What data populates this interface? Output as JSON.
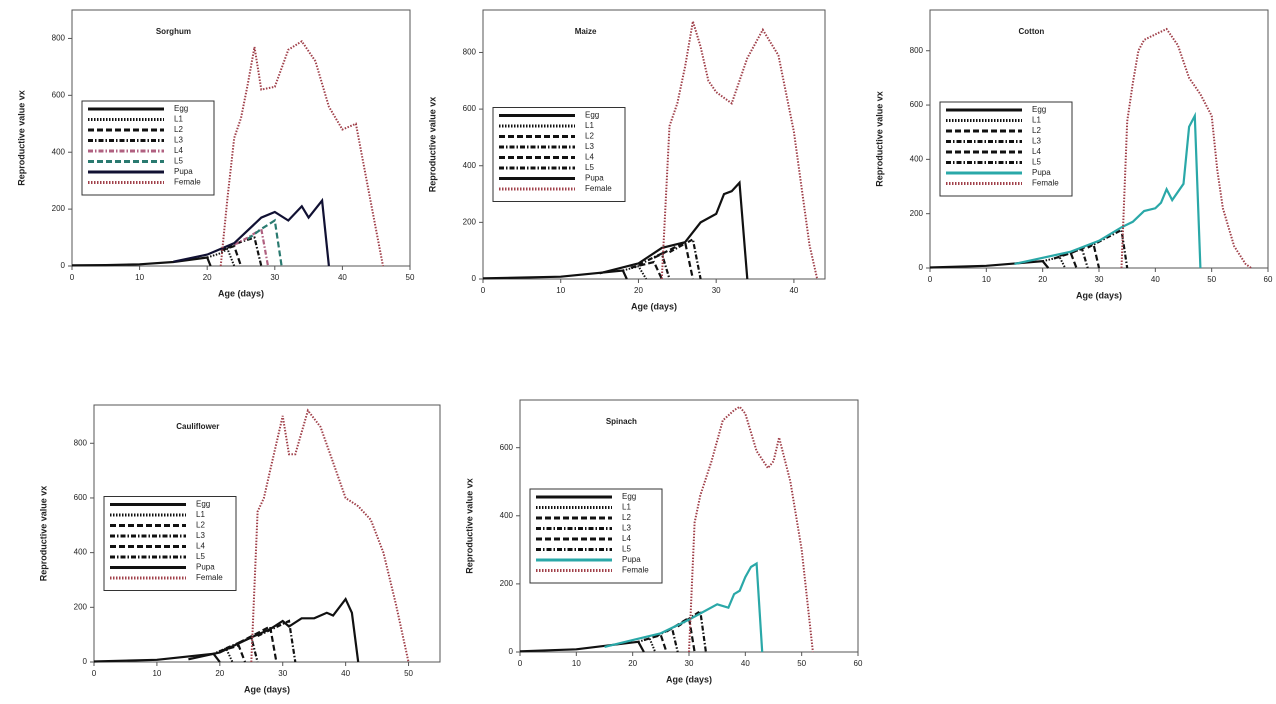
{
  "chart_data": [
    {
      "type": "line",
      "title": "Sorghum",
      "x_label": "Age (days)",
      "y_label": "Reproductive value vx",
      "xlim": [
        0,
        50
      ],
      "xticks": [
        0,
        10,
        20,
        30,
        40,
        50
      ],
      "ylim": [
        0,
        900
      ],
      "yticks": [
        0,
        200,
        400,
        600,
        800
      ],
      "legend": "left",
      "series": [
        {
          "name": "Egg",
          "color": "#111111",
          "dash": "solid",
          "x": [
            0,
            5,
            10,
            15,
            20,
            20.5
          ],
          "values": [
            2,
            3,
            6,
            14,
            30,
            0
          ]
        },
        {
          "name": "L1",
          "color": "#111111",
          "dash": "dotted",
          "x": [
            20,
            22,
            23,
            24
          ],
          "values": [
            30,
            45,
            60,
            0
          ]
        },
        {
          "name": "L2",
          "color": "#111111",
          "dash": "dashed",
          "x": [
            22,
            24,
            25
          ],
          "values": [
            55,
            70,
            0
          ]
        },
        {
          "name": "L3",
          "color": "#111111",
          "dash": "dashdot",
          "x": [
            23,
            25,
            27,
            28
          ],
          "values": [
            65,
            85,
            100,
            0
          ]
        },
        {
          "name": "L4",
          "color": "#b06080",
          "dash": "dashdot",
          "x": [
            24,
            26,
            28,
            29
          ],
          "values": [
            75,
            100,
            130,
            0
          ]
        },
        {
          "name": "L5",
          "color": "#2a7a70",
          "dash": "dashed",
          "x": [
            26,
            28,
            30,
            31
          ],
          "values": [
            95,
            130,
            160,
            0
          ]
        },
        {
          "name": "Pupa",
          "color": "#111133",
          "dash": "solid",
          "x": [
            15,
            20,
            24,
            28,
            30,
            32,
            34,
            35,
            37,
            38
          ],
          "values": [
            15,
            40,
            80,
            170,
            190,
            160,
            210,
            170,
            230,
            0
          ]
        },
        {
          "name": "Female",
          "color": "#a0404a",
          "dash": "dotted",
          "x": [
            22,
            23,
            24,
            25,
            26,
            27,
            28,
            30,
            32,
            34,
            36,
            38,
            40,
            42,
            44,
            46
          ],
          "values": [
            0,
            240,
            450,
            520,
            640,
            770,
            620,
            630,
            760,
            790,
            720,
            560,
            480,
            500,
            250,
            0
          ]
        }
      ]
    },
    {
      "type": "line",
      "title": "Maize",
      "x_label": "Age (days)",
      "y_label": "Reproductive value vx",
      "xlim": [
        0,
        44
      ],
      "xticks": [
        0,
        10,
        20,
        30,
        40
      ],
      "ylim": [
        0,
        950
      ],
      "yticks": [
        0,
        200,
        400,
        600,
        800
      ],
      "legend": "left",
      "series": [
        {
          "name": "Egg",
          "color": "#111111",
          "dash": "solid",
          "x": [
            0,
            10,
            18,
            18.5
          ],
          "values": [
            2,
            8,
            30,
            0
          ]
        },
        {
          "name": "L1",
          "color": "#111111",
          "dash": "dotted",
          "x": [
            18,
            20,
            21
          ],
          "values": [
            30,
            45,
            0
          ]
        },
        {
          "name": "L2",
          "color": "#111111",
          "dash": "dashed",
          "x": [
            19,
            22,
            23
          ],
          "values": [
            40,
            60,
            0
          ]
        },
        {
          "name": "L3",
          "color": "#111111",
          "dash": "dashdot",
          "x": [
            20,
            23,
            24
          ],
          "values": [
            50,
            90,
            0
          ]
        },
        {
          "name": "L4",
          "color": "#111111",
          "dash": "dashed",
          "x": [
            22,
            26,
            27
          ],
          "values": [
            75,
            130,
            0
          ]
        },
        {
          "name": "L5",
          "color": "#111111",
          "dash": "dashdot",
          "x": [
            24,
            27,
            28
          ],
          "values": [
            95,
            140,
            0
          ]
        },
        {
          "name": "Pupa",
          "color": "#111111",
          "dash": "solid",
          "x": [
            15,
            20,
            23,
            26,
            28,
            30,
            31,
            32,
            33,
            34
          ],
          "values": [
            20,
            55,
            110,
            130,
            200,
            230,
            300,
            310,
            340,
            0
          ]
        },
        {
          "name": "Female",
          "color": "#a0404a",
          "dash": "dotted",
          "x": [
            23,
            24,
            25,
            26,
            27,
            28,
            29,
            30,
            31,
            32,
            34,
            36,
            38,
            40,
            42,
            43
          ],
          "values": [
            0,
            540,
            620,
            750,
            910,
            820,
            700,
            660,
            640,
            620,
            780,
            880,
            790,
            520,
            120,
            0
          ]
        }
      ]
    },
    {
      "type": "line",
      "title": "Cotton",
      "x_label": "Age (days)",
      "y_label": "Reproductive value vx",
      "xlim": [
        0,
        60
      ],
      "xticks": [
        0,
        10,
        20,
        30,
        40,
        50,
        60
      ],
      "ylim": [
        0,
        950
      ],
      "yticks": [
        0,
        200,
        400,
        600,
        800
      ],
      "legend": "left",
      "series": [
        {
          "name": "Egg",
          "color": "#111111",
          "dash": "solid",
          "x": [
            0,
            10,
            20,
            21
          ],
          "values": [
            2,
            8,
            25,
            0
          ]
        },
        {
          "name": "L1",
          "color": "#111111",
          "dash": "dotted",
          "x": [
            20,
            23,
            24
          ],
          "values": [
            25,
            40,
            0
          ]
        },
        {
          "name": "L2",
          "color": "#111111",
          "dash": "dashed",
          "x": [
            22,
            25,
            26
          ],
          "values": [
            35,
            55,
            0
          ]
        },
        {
          "name": "L3",
          "color": "#111111",
          "dash": "dashdot",
          "x": [
            23,
            27,
            28
          ],
          "values": [
            45,
            70,
            0
          ]
        },
        {
          "name": "L4",
          "color": "#111111",
          "dash": "dashed",
          "x": [
            25,
            29,
            30
          ],
          "values": [
            55,
            90,
            0
          ]
        },
        {
          "name": "L5",
          "color": "#111111",
          "dash": "dashdot",
          "x": [
            28,
            34,
            35
          ],
          "values": [
            75,
            140,
            0
          ]
        },
        {
          "name": "Pupa",
          "color": "#2aa8a8",
          "dash": "solid",
          "x": [
            15,
            25,
            30,
            34,
            36,
            38,
            40,
            41,
            42,
            43,
            45,
            46,
            47,
            48
          ],
          "values": [
            15,
            60,
            100,
            150,
            170,
            210,
            220,
            240,
            290,
            250,
            310,
            520,
            560,
            0
          ]
        },
        {
          "name": "Female",
          "color": "#a0404a",
          "dash": "dotted",
          "x": [
            34,
            35,
            36,
            37,
            38,
            40,
            42,
            44,
            46,
            48,
            50,
            51,
            52,
            54,
            56,
            57
          ],
          "values": [
            0,
            540,
            680,
            800,
            840,
            860,
            880,
            820,
            700,
            640,
            560,
            360,
            220,
            80,
            15,
            0
          ]
        }
      ]
    },
    {
      "type": "line",
      "title": "Cauliflower",
      "x_label": "Age (days)",
      "y_label": "Reproductive value vx",
      "xlim": [
        0,
        55
      ],
      "xticks": [
        0,
        10,
        20,
        30,
        40,
        50
      ],
      "ylim": [
        0,
        940
      ],
      "yticks": [
        0,
        200,
        400,
        600,
        800
      ],
      "legend": "left",
      "series": [
        {
          "name": "Egg",
          "color": "#111111",
          "dash": "solid",
          "x": [
            0,
            10,
            19,
            20
          ],
          "values": [
            2,
            8,
            30,
            0
          ]
        },
        {
          "name": "L1",
          "color": "#111111",
          "dash": "dotted",
          "x": [
            19,
            21,
            22
          ],
          "values": [
            30,
            50,
            0
          ]
        },
        {
          "name": "L2",
          "color": "#111111",
          "dash": "dashed",
          "x": [
            20,
            23,
            24
          ],
          "values": [
            40,
            60,
            0
          ]
        },
        {
          "name": "L3",
          "color": "#111111",
          "dash": "dashdot",
          "x": [
            21,
            25,
            26
          ],
          "values": [
            50,
            90,
            0
          ]
        },
        {
          "name": "L4",
          "color": "#111111",
          "dash": "dashed",
          "x": [
            23,
            28,
            29
          ],
          "values": [
            70,
            130,
            0
          ]
        },
        {
          "name": "L5",
          "color": "#111111",
          "dash": "dashdot",
          "x": [
            26,
            31,
            32
          ],
          "values": [
            95,
            150,
            0
          ]
        },
        {
          "name": "Pupa",
          "color": "#111111",
          "dash": "solid",
          "x": [
            15,
            20,
            25,
            28,
            30,
            31,
            33,
            35,
            37,
            38,
            40,
            41,
            42
          ],
          "values": [
            10,
            35,
            90,
            120,
            150,
            130,
            160,
            160,
            180,
            170,
            230,
            180,
            0
          ]
        },
        {
          "name": "Female",
          "color": "#a0404a",
          "dash": "dotted",
          "x": [
            25,
            26,
            27,
            28,
            29,
            30,
            31,
            32,
            34,
            36,
            38,
            40,
            42,
            44,
            46,
            48,
            50
          ],
          "values": [
            0,
            550,
            600,
            700,
            800,
            900,
            760,
            760,
            920,
            860,
            730,
            600,
            570,
            520,
            400,
            210,
            0
          ]
        }
      ]
    },
    {
      "type": "line",
      "title": "Spinach",
      "x_label": "Age (days)",
      "y_label": "Reproductive value vx",
      "xlim": [
        0,
        60
      ],
      "xticks": [
        0,
        10,
        20,
        30,
        40,
        50,
        60
      ],
      "ylim": [
        0,
        740
      ],
      "yticks": [
        0,
        200,
        400,
        600
      ],
      "legend": "left",
      "series": [
        {
          "name": "Egg",
          "color": "#111111",
          "dash": "solid",
          "x": [
            0,
            10,
            21,
            22
          ],
          "values": [
            2,
            8,
            30,
            0
          ]
        },
        {
          "name": "L1",
          "color": "#111111",
          "dash": "dotted",
          "x": [
            21,
            23,
            24
          ],
          "values": [
            30,
            40,
            0
          ]
        },
        {
          "name": "L2",
          "color": "#111111",
          "dash": "dashed",
          "x": [
            22,
            25,
            26
          ],
          "values": [
            35,
            50,
            0
          ]
        },
        {
          "name": "L3",
          "color": "#111111",
          "dash": "dashdot",
          "x": [
            24,
            27,
            28
          ],
          "values": [
            45,
            70,
            0
          ]
        },
        {
          "name": "L4",
          "color": "#111111",
          "dash": "dashed",
          "x": [
            26,
            30,
            31
          ],
          "values": [
            60,
            100,
            0
          ]
        },
        {
          "name": "L5",
          "color": "#111111",
          "dash": "dashdot",
          "x": [
            28,
            32,
            33
          ],
          "values": [
            75,
            120,
            0
          ]
        },
        {
          "name": "Pupa",
          "color": "#2aa8a8",
          "dash": "solid",
          "x": [
            15,
            25,
            30,
            35,
            37,
            38,
            39,
            40,
            41,
            42,
            43
          ],
          "values": [
            15,
            55,
            95,
            140,
            130,
            170,
            180,
            220,
            250,
            260,
            0
          ]
        },
        {
          "name": "Female",
          "color": "#a0404a",
          "dash": "dotted",
          "x": [
            30,
            31,
            32,
            34,
            36,
            38,
            39,
            40,
            42,
            44,
            45,
            46,
            48,
            50,
            52
          ],
          "values": [
            0,
            380,
            460,
            560,
            680,
            710,
            720,
            700,
            590,
            540,
            560,
            630,
            500,
            300,
            0
          ]
        }
      ]
    }
  ]
}
